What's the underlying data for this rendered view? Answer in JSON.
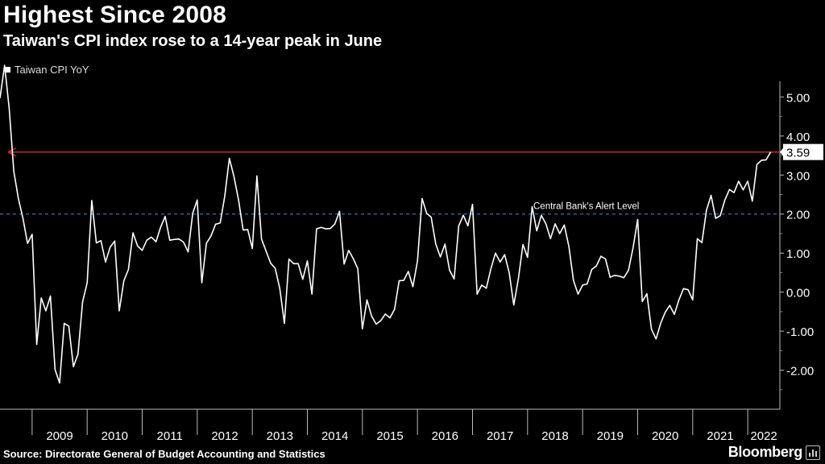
{
  "header": {
    "title": "Highest Since 2008",
    "subtitle": "Taiwan's CPI index rose to a 14-year peak in June"
  },
  "footer": {
    "source": "Source: Directorate General of Budget Accounting and Statistics",
    "brand": "Bloomberg"
  },
  "chart_data": {
    "type": "line",
    "title": "Highest Since 2008",
    "subtitle": "Taiwan's CPI index rose to a 14-year peak in June",
    "series": [
      {
        "name": "Taiwan CPI YoY",
        "color": "#ffffff",
        "points": [
          [
            "2008-06",
            4.97
          ],
          [
            "2008-07",
            5.81
          ],
          [
            "2008-08",
            4.71
          ],
          [
            "2008-09",
            3.1
          ],
          [
            "2008-10",
            2.4
          ],
          [
            "2008-11",
            1.89
          ],
          [
            "2008-12",
            1.25
          ],
          [
            "2009-01",
            1.48
          ],
          [
            "2009-02",
            -1.34
          ],
          [
            "2009-03",
            -0.15
          ],
          [
            "2009-04",
            -0.48
          ],
          [
            "2009-05",
            -0.1
          ],
          [
            "2009-06",
            -1.98
          ],
          [
            "2009-07",
            -2.33
          ],
          [
            "2009-08",
            -0.8
          ],
          [
            "2009-09",
            -0.87
          ],
          [
            "2009-10",
            -1.91
          ],
          [
            "2009-11",
            -1.59
          ],
          [
            "2009-12",
            -0.25
          ],
          [
            "2010-01",
            0.24
          ],
          [
            "2010-02",
            2.35
          ],
          [
            "2010-03",
            1.26
          ],
          [
            "2010-04",
            1.32
          ],
          [
            "2010-05",
            0.77
          ],
          [
            "2010-06",
            1.15
          ],
          [
            "2010-07",
            1.31
          ],
          [
            "2010-08",
            -0.48
          ],
          [
            "2010-09",
            0.29
          ],
          [
            "2010-10",
            0.58
          ],
          [
            "2010-11",
            1.52
          ],
          [
            "2010-12",
            1.18
          ],
          [
            "2011-01",
            1.07
          ],
          [
            "2011-02",
            1.33
          ],
          [
            "2011-03",
            1.41
          ],
          [
            "2011-04",
            1.29
          ],
          [
            "2011-05",
            1.66
          ],
          [
            "2011-06",
            1.94
          ],
          [
            "2011-07",
            1.33
          ],
          [
            "2011-08",
            1.35
          ],
          [
            "2011-09",
            1.36
          ],
          [
            "2011-10",
            1.28
          ],
          [
            "2011-11",
            1.03
          ],
          [
            "2011-12",
            2.02
          ],
          [
            "2012-01",
            2.36
          ],
          [
            "2012-02",
            0.24
          ],
          [
            "2012-03",
            1.25
          ],
          [
            "2012-04",
            1.44
          ],
          [
            "2012-05",
            1.74
          ],
          [
            "2012-06",
            1.77
          ],
          [
            "2012-07",
            2.46
          ],
          [
            "2012-08",
            3.43
          ],
          [
            "2012-09",
            2.96
          ],
          [
            "2012-10",
            2.36
          ],
          [
            "2012-11",
            1.59
          ],
          [
            "2012-12",
            1.6
          ],
          [
            "2013-01",
            1.12
          ],
          [
            "2013-02",
            2.98
          ],
          [
            "2013-03",
            1.36
          ],
          [
            "2013-04",
            1.05
          ],
          [
            "2013-05",
            0.74
          ],
          [
            "2013-06",
            0.61
          ],
          [
            "2013-07",
            0.09
          ],
          [
            "2013-08",
            -0.8
          ],
          [
            "2013-09",
            0.85
          ],
          [
            "2013-10",
            0.73
          ],
          [
            "2013-11",
            0.73
          ],
          [
            "2013-12",
            0.33
          ],
          [
            "2014-01",
            0.8
          ],
          [
            "2014-02",
            -0.05
          ],
          [
            "2014-03",
            1.62
          ],
          [
            "2014-04",
            1.66
          ],
          [
            "2014-05",
            1.62
          ],
          [
            "2014-06",
            1.63
          ],
          [
            "2014-07",
            1.75
          ],
          [
            "2014-08",
            2.07
          ],
          [
            "2014-09",
            0.72
          ],
          [
            "2014-10",
            1.07
          ],
          [
            "2014-11",
            0.86
          ],
          [
            "2014-12",
            0.6
          ],
          [
            "2015-01",
            -0.94
          ],
          [
            "2015-02",
            -0.2
          ],
          [
            "2015-03",
            -0.61
          ],
          [
            "2015-04",
            -0.82
          ],
          [
            "2015-05",
            -0.73
          ],
          [
            "2015-06",
            -0.56
          ],
          [
            "2015-07",
            -0.66
          ],
          [
            "2015-08",
            -0.44
          ],
          [
            "2015-09",
            0.29
          ],
          [
            "2015-10",
            0.3
          ],
          [
            "2015-11",
            0.53
          ],
          [
            "2015-12",
            0.14
          ],
          [
            "2016-01",
            0.8
          ],
          [
            "2016-02",
            2.4
          ],
          [
            "2016-03",
            2.02
          ],
          [
            "2016-04",
            1.92
          ],
          [
            "2016-05",
            1.23
          ],
          [
            "2016-06",
            0.9
          ],
          [
            "2016-07",
            1.23
          ],
          [
            "2016-08",
            0.56
          ],
          [
            "2016-09",
            0.34
          ],
          [
            "2016-10",
            1.7
          ],
          [
            "2016-11",
            1.97
          ],
          [
            "2016-12",
            1.7
          ],
          [
            "2017-01",
            2.25
          ],
          [
            "2017-02",
            -0.05
          ],
          [
            "2017-03",
            0.18
          ],
          [
            "2017-04",
            0.1
          ],
          [
            "2017-05",
            0.6
          ],
          [
            "2017-06",
            1.0
          ],
          [
            "2017-07",
            0.77
          ],
          [
            "2017-08",
            0.96
          ],
          [
            "2017-09",
            0.5
          ],
          [
            "2017-10",
            -0.33
          ],
          [
            "2017-11",
            0.34
          ],
          [
            "2017-12",
            1.22
          ],
          [
            "2018-01",
            0.89
          ],
          [
            "2018-02",
            2.19
          ],
          [
            "2018-03",
            1.57
          ],
          [
            "2018-04",
            1.97
          ],
          [
            "2018-05",
            1.75
          ],
          [
            "2018-06",
            1.37
          ],
          [
            "2018-07",
            1.75
          ],
          [
            "2018-08",
            1.5
          ],
          [
            "2018-09",
            1.72
          ],
          [
            "2018-10",
            1.17
          ],
          [
            "2018-11",
            0.3
          ],
          [
            "2018-12",
            -0.05
          ],
          [
            "2019-01",
            0.18
          ],
          [
            "2019-02",
            0.21
          ],
          [
            "2019-03",
            0.58
          ],
          [
            "2019-04",
            0.67
          ],
          [
            "2019-05",
            0.92
          ],
          [
            "2019-06",
            0.85
          ],
          [
            "2019-07",
            0.38
          ],
          [
            "2019-08",
            0.43
          ],
          [
            "2019-09",
            0.41
          ],
          [
            "2019-10",
            0.37
          ],
          [
            "2019-11",
            0.56
          ],
          [
            "2019-12",
            1.14
          ],
          [
            "2020-01",
            1.86
          ],
          [
            "2020-02",
            -0.24
          ],
          [
            "2020-03",
            -0.04
          ],
          [
            "2020-04",
            -0.95
          ],
          [
            "2020-05",
            -1.2
          ],
          [
            "2020-06",
            -0.8
          ],
          [
            "2020-07",
            -0.52
          ],
          [
            "2020-08",
            -0.34
          ],
          [
            "2020-09",
            -0.57
          ],
          [
            "2020-10",
            -0.2
          ],
          [
            "2020-11",
            0.09
          ],
          [
            "2020-12",
            0.06
          ],
          [
            "2021-01",
            -0.2
          ],
          [
            "2021-02",
            1.37
          ],
          [
            "2021-03",
            1.27
          ],
          [
            "2021-04",
            2.1
          ],
          [
            "2021-05",
            2.48
          ],
          [
            "2021-06",
            1.89
          ],
          [
            "2021-07",
            1.96
          ],
          [
            "2021-08",
            2.36
          ],
          [
            "2021-09",
            2.63
          ],
          [
            "2021-10",
            2.55
          ],
          [
            "2021-11",
            2.84
          ],
          [
            "2021-12",
            2.62
          ],
          [
            "2022-01",
            2.84
          ],
          [
            "2022-02",
            2.33
          ],
          [
            "2022-03",
            3.27
          ],
          [
            "2022-04",
            3.38
          ],
          [
            "2022-05",
            3.39
          ],
          [
            "2022-06",
            3.59
          ]
        ]
      }
    ],
    "y_ticks": [
      "-2.00",
      "-1.00",
      "0.00",
      "1.00",
      "2.00",
      "3.00",
      "4.00",
      "5.00"
    ],
    "ylim": [
      -3.0,
      5.4
    ],
    "x_ticks": [
      "2009",
      "2010",
      "2011",
      "2012",
      "2013",
      "2014",
      "2015",
      "2016",
      "2017",
      "2018",
      "2019",
      "2020",
      "2021",
      "2022"
    ],
    "xlim": [
      "2008-06",
      "2022-08"
    ],
    "annotations": {
      "alert_level": {
        "value": 2.0,
        "label": "Central Bank's Alert Level",
        "color": "#4a90c4"
      },
      "peak_line": {
        "value": 3.59,
        "label": "3.59",
        "color": "#c0292e"
      }
    },
    "legend_position": "top-left",
    "grid": false
  }
}
